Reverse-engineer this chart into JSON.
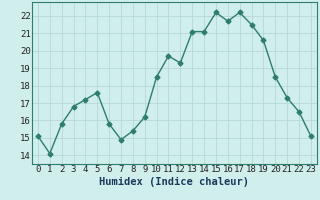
{
  "x": [
    0,
    1,
    2,
    3,
    4,
    5,
    6,
    7,
    8,
    9,
    10,
    11,
    12,
    13,
    14,
    15,
    16,
    17,
    18,
    19,
    20,
    21,
    22,
    23
  ],
  "y": [
    15.1,
    14.1,
    15.8,
    16.8,
    17.2,
    17.6,
    15.8,
    14.9,
    15.4,
    16.2,
    18.5,
    19.7,
    19.3,
    21.1,
    21.1,
    22.2,
    21.7,
    22.2,
    21.5,
    20.6,
    18.5,
    17.3,
    16.5,
    15.1
  ],
  "line_color": "#2e7d6e",
  "bg_color": "#d0eeec",
  "grid_color": "#b8d8d5",
  "xlabel": "Humidex (Indice chaleur)",
  "xlim": [
    -0.5,
    23.5
  ],
  "ylim": [
    13.5,
    22.8
  ],
  "yticks": [
    14,
    15,
    16,
    17,
    18,
    19,
    20,
    21,
    22
  ],
  "xticks": [
    0,
    1,
    2,
    3,
    4,
    5,
    6,
    7,
    8,
    9,
    10,
    11,
    12,
    13,
    14,
    15,
    16,
    17,
    18,
    19,
    20,
    21,
    22,
    23
  ],
  "xtick_labels": [
    "0",
    "1",
    "2",
    "3",
    "4",
    "5",
    "6",
    "7",
    "8",
    "9",
    "10",
    "11",
    "12",
    "13",
    "14",
    "15",
    "16",
    "17",
    "18",
    "19",
    "20",
    "21",
    "22",
    "23"
  ],
  "marker": "D",
  "markersize": 2.5,
  "linewidth": 1.0,
  "tick_fontsize": 6.5,
  "xlabel_fontsize": 7.5
}
